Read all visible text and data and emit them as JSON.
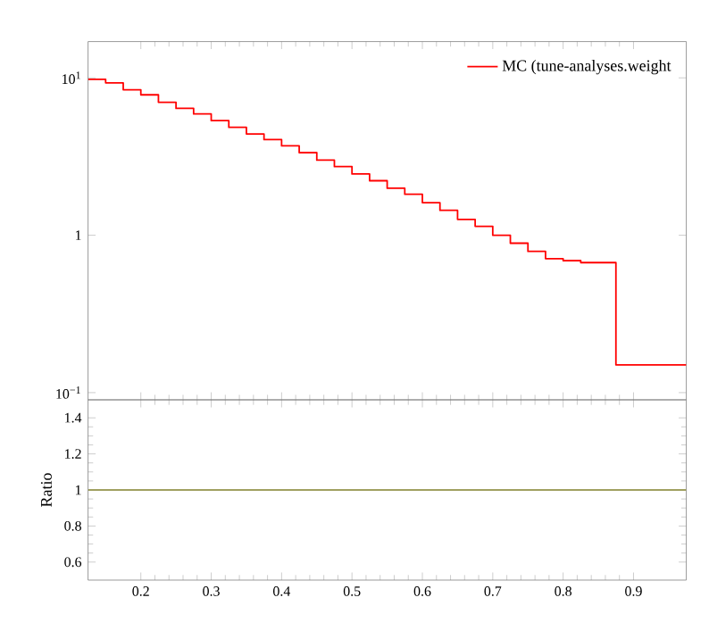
{
  "chart_data": [
    {
      "type": "histogram",
      "bins": [
        0.125,
        0.15,
        0.175,
        0.2,
        0.225,
        0.25,
        0.275,
        0.3,
        0.325,
        0.35,
        0.375,
        0.4,
        0.425,
        0.45,
        0.475,
        0.5,
        0.525,
        0.55,
        0.575,
        0.6,
        0.625,
        0.65,
        0.675,
        0.7,
        0.725,
        0.75,
        0.775,
        0.8,
        0.825,
        0.85,
        0.875,
        0.975
      ],
      "series": [
        {
          "name": "MC (tune-analyses.weight",
          "color": "#ff0000",
          "values": [
            9.8,
            9.3,
            8.4,
            7.8,
            7.0,
            6.4,
            5.9,
            5.35,
            4.85,
            4.4,
            4.05,
            3.7,
            3.35,
            3.0,
            2.73,
            2.45,
            2.22,
            1.99,
            1.82,
            1.61,
            1.44,
            1.26,
            1.14,
            1.0,
            0.89,
            0.79,
            0.71,
            0.69,
            0.67,
            0.67,
            0.15
          ]
        }
      ],
      "xlim": [
        0.125,
        0.975
      ],
      "xticks": [
        0.2,
        0.3,
        0.4,
        0.5,
        0.6,
        0.7,
        0.8,
        0.9
      ],
      "ylim": [
        0.09,
        17
      ],
      "yticks": [
        {
          "value": 0.1,
          "label": "10$^{−1}$"
        },
        {
          "value": 1,
          "label": "1"
        },
        {
          "value": 10,
          "label": "10$^{1}$"
        }
      ],
      "log": "y",
      "legend": "top right",
      "tick_labels": "y",
      "marker": "none",
      "line_style": "solid"
    },
    {
      "type": "line",
      "x": [
        0.125,
        0.975
      ],
      "series": [
        {
          "color": "#a0a060",
          "values": [
            1,
            1
          ]
        }
      ],
      "xlim": [
        0.125,
        0.975
      ],
      "xticks": [
        0.2,
        0.3,
        0.4,
        0.5,
        0.6,
        0.7,
        0.8,
        0.9
      ],
      "ylim": [
        0.5,
        1.5
      ],
      "yticks": [
        0.6,
        0.8,
        1,
        1.2,
        1.4
      ],
      "ylabel": "Ratio",
      "marker": "none",
      "line_style": "solid"
    }
  ]
}
